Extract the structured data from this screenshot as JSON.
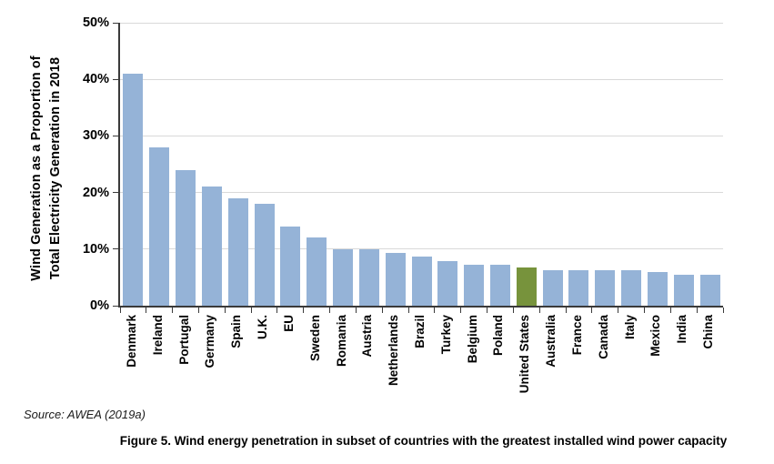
{
  "figure": {
    "source_note": "Source: AWEA (2019a)",
    "caption": "Figure 5. Wind energy penetration in subset of countries with the greatest installed wind power capacity"
  },
  "chart_data": {
    "type": "bar",
    "title": "",
    "ylabel_line1": "Wind Generation as a Proportion of",
    "ylabel_line2": "Total Electricity Generation in 2018",
    "xlabel": "",
    "categories": [
      "Denmark",
      "Ireland",
      "Portugal",
      "Germany",
      "Spain",
      "U.K.",
      "EU",
      "Sweden",
      "Romania",
      "Austria",
      "Netherlands",
      "Brazil",
      "Turkey",
      "Belgium",
      "Poland",
      "United States",
      "Australia",
      "France",
      "Canada",
      "Italy",
      "Mexico",
      "India",
      "China"
    ],
    "values": [
      41,
      28,
      24,
      21,
      19,
      18,
      14,
      12,
      10,
      10,
      9.3,
      8.7,
      7.9,
      7.3,
      7.3,
      6.7,
      6.3,
      6.2,
      6.2,
      6.2,
      6.0,
      5.5,
      5.5
    ],
    "highlight_category": "United States",
    "bar_color": "#95B3D7",
    "highlight_color": "#77933C",
    "ylim": [
      0,
      50
    ],
    "yticks": [
      {
        "label": "0%",
        "value": 0
      },
      {
        "label": "10%",
        "value": 10
      },
      {
        "label": "20%",
        "value": 20
      },
      {
        "label": "30%",
        "value": 30
      },
      {
        "label": "40%",
        "value": 40
      },
      {
        "label": "50%",
        "value": 50
      }
    ],
    "grid": true,
    "gridline_color": "#D9D9D9",
    "axis_color": "#3A3A3A",
    "legend_position": "none"
  }
}
